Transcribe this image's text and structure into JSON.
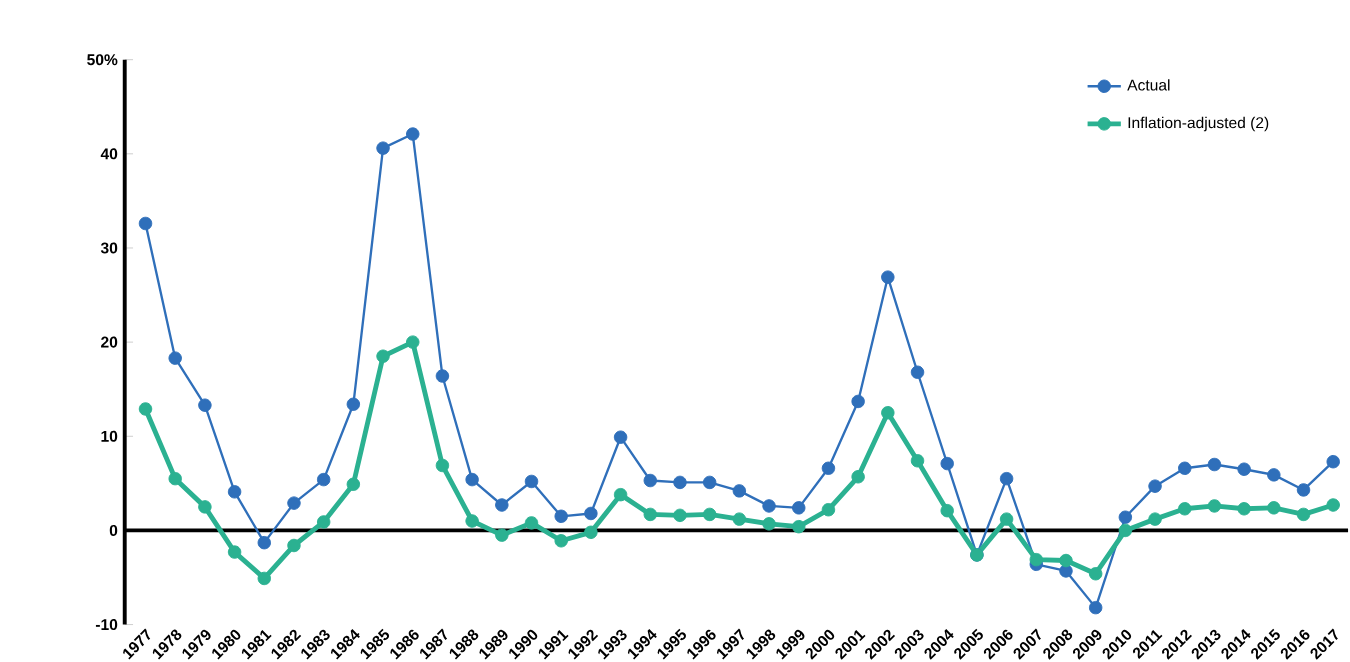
{
  "chart_data": {
    "type": "line",
    "categories": [
      "1977",
      "1978",
      "1979",
      "1980",
      "1981",
      "1982",
      "1983",
      "1984",
      "1985",
      "1986",
      "1987",
      "1988",
      "1989",
      "1990",
      "1991",
      "1992",
      "1993",
      "1994",
      "1995",
      "1996",
      "1997",
      "1998",
      "1999",
      "2000",
      "2001",
      "2002",
      "2003",
      "2004",
      "2005",
      "2006",
      "2007",
      "2008",
      "2009",
      "2010",
      "2011",
      "2012",
      "2013",
      "2014",
      "2015",
      "2016",
      "2017"
    ],
    "series": [
      {
        "name": "Actual",
        "color": "#2f6fba",
        "values": [
          32.6,
          18.3,
          13.3,
          4.1,
          -1.3,
          2.9,
          5.4,
          13.4,
          40.6,
          42.1,
          16.4,
          5.4,
          2.7,
          5.2,
          1.5,
          1.8,
          9.9,
          5.3,
          5.1,
          5.1,
          4.2,
          2.6,
          2.4,
          6.6,
          13.7,
          26.9,
          16.8,
          7.1,
          -2.6,
          5.5,
          -3.6,
          -4.3,
          -8.2,
          1.4,
          4.7,
          6.6,
          7.0,
          6.5,
          5.9,
          4.3,
          7.3
        ]
      },
      {
        "name": "Inflation-adjusted (2)",
        "color": "#2bb191",
        "values": [
          12.9,
          5.5,
          2.5,
          -2.3,
          -5.1,
          -1.6,
          0.9,
          4.9,
          18.5,
          20.0,
          6.9,
          1.0,
          -0.5,
          0.8,
          -1.1,
          -0.2,
          3.8,
          1.7,
          1.6,
          1.7,
          1.2,
          0.7,
          0.4,
          2.2,
          5.7,
          12.5,
          7.4,
          2.1,
          -2.6,
          1.2,
          -3.1,
          -3.2,
          -4.6,
          0.0,
          1.2,
          2.3,
          2.6,
          2.3,
          2.4,
          1.7,
          2.7
        ]
      }
    ],
    "ylim": [
      -10,
      50
    ],
    "yticks": [
      -10,
      0,
      10,
      20,
      30,
      40,
      {
        "value": 50,
        "label": "50%"
      }
    ],
    "marker": "circle",
    "legend": "top right"
  }
}
